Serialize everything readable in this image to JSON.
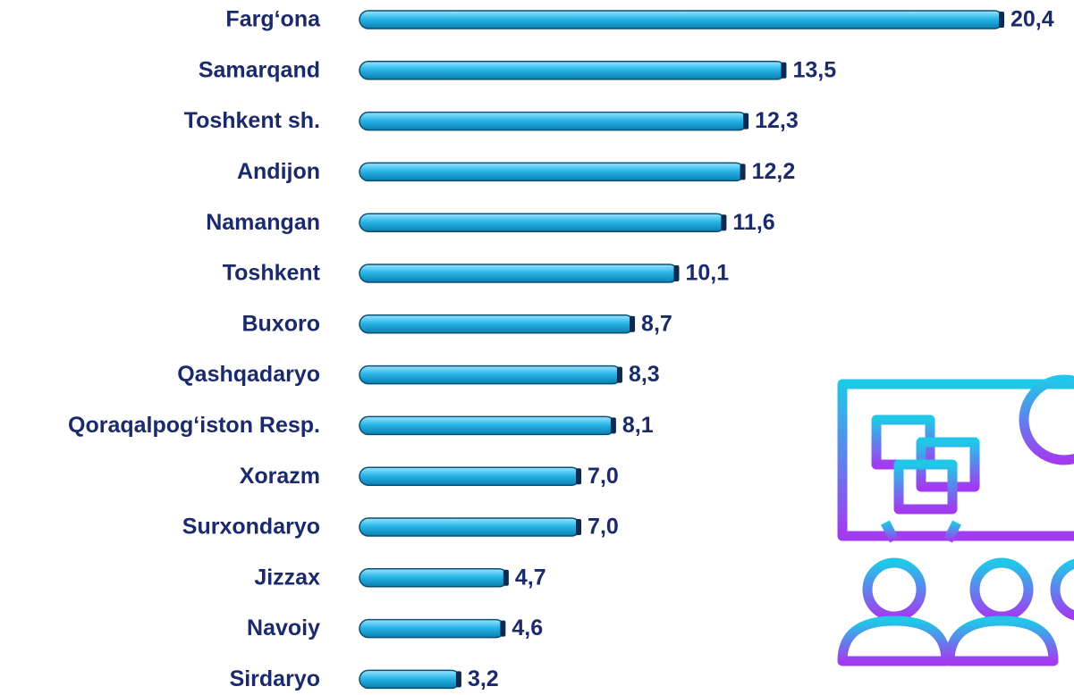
{
  "chart_data": {
    "type": "bar",
    "orientation": "horizontal",
    "categories": [
      "Farg‘ona",
      "Samarqand",
      "Toshkent sh.",
      "Andijon",
      "Namangan",
      "Toshkent",
      "Buxoro",
      "Qashqadaryo",
      "Qoraqalpog‘iston Resp.",
      "Xorazm",
      "Surxondaryo",
      "Jizzax",
      "Navoiy",
      "Sirdaryo"
    ],
    "values": [
      20.4,
      13.5,
      12.3,
      12.2,
      11.6,
      10.1,
      8.7,
      8.3,
      8.1,
      7.0,
      7.0,
      4.7,
      4.6,
      3.2
    ],
    "value_labels": [
      "20,4",
      "13,5",
      "12,3",
      "12,2",
      "11,6",
      "10,1",
      "8,7",
      "8,3",
      "8,1",
      "7,0",
      "7,0",
      "4,7",
      "4,6",
      "3,2"
    ],
    "color": "#29b6e8"
  }
}
